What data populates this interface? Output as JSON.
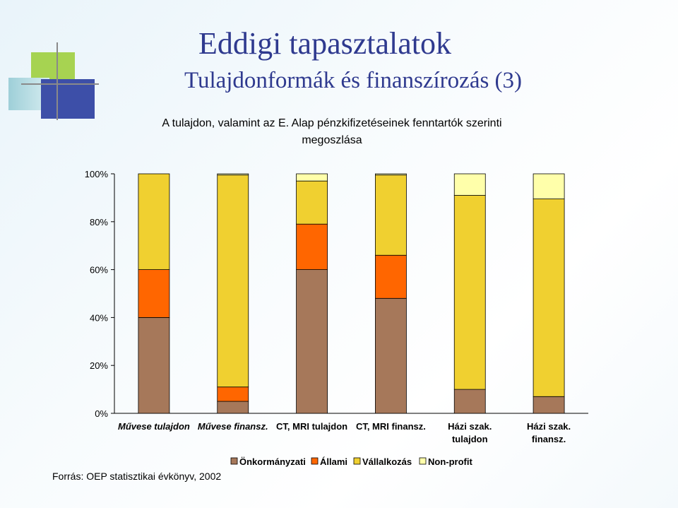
{
  "slide": {
    "title": "Eddigi tapasztalatok",
    "subtitle": "Tulajdonformák és finanszírozás (3)",
    "source": "Forrás: OEP statisztikai évkönyv, 2002"
  },
  "chart_data": {
    "type": "bar",
    "stacked": true,
    "percent": true,
    "title": "A tulajdon, valamint az E. Alap pénzkifizetéseinek fenntartók szerinti megoszlása",
    "title_lines": [
      "A tulajdon, valamint az E. Alap pénzkifizetéseinek fenntartók szerinti",
      "megoszlása"
    ],
    "categories": [
      [
        "Művese tulajdon"
      ],
      [
        "Művese finansz."
      ],
      [
        "CT, MRI tulajdon"
      ],
      [
        "CT, MRI finansz."
      ],
      [
        "Házi szak.",
        "tulajdon"
      ],
      [
        "Házi szak.",
        "finansz."
      ]
    ],
    "category_italic": [
      true,
      true,
      false,
      false,
      false,
      false
    ],
    "yticks": [
      "0%",
      "20%",
      "40%",
      "60%",
      "80%",
      "100%"
    ],
    "ylim": [
      0,
      100
    ],
    "grid": false,
    "legend_position": "bottom",
    "series": [
      {
        "name": "Önkormányzati",
        "color": "#a6785a",
        "values": [
          40,
          5,
          60,
          48,
          10,
          7
        ]
      },
      {
        "name": "Állami",
        "color": "#ff6600",
        "values": [
          20,
          6,
          19,
          18,
          0,
          0
        ]
      },
      {
        "name": "Vállalkozás",
        "color": "#f0d030",
        "values": [
          40,
          88.5,
          18,
          33.5,
          81,
          82.5
        ]
      },
      {
        "name": "Non-profit",
        "color": "#ffffaa",
        "values": [
          0,
          0.5,
          3,
          0.5,
          9,
          10.5
        ]
      }
    ]
  }
}
